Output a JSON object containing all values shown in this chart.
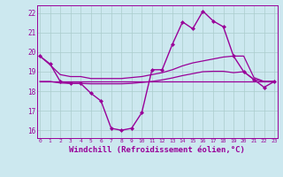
{
  "bg_color": "#cce8ef",
  "line_color": "#990099",
  "grid_color": "#aacccc",
  "xlabel": "Windchill (Refroidissement éolien,°C)",
  "xlabel_fontsize": 6.5,
  "yticks": [
    16,
    17,
    18,
    19,
    20,
    21,
    22
  ],
  "xticks": [
    0,
    1,
    2,
    3,
    4,
    5,
    6,
    7,
    8,
    9,
    10,
    11,
    12,
    13,
    14,
    15,
    16,
    17,
    18,
    19,
    20,
    21,
    22,
    23
  ],
  "xlim": [
    -0.3,
    23.3
  ],
  "ylim": [
    15.6,
    22.4
  ],
  "series": [
    {
      "x": [
        0,
        1,
        2,
        3,
        4,
        5,
        6,
        7,
        8,
        9,
        10,
        11,
        12,
        13,
        14,
        15,
        16,
        17,
        18,
        19,
        20,
        21,
        22,
        23
      ],
      "y": [
        19.8,
        19.4,
        18.5,
        18.4,
        18.4,
        17.9,
        17.5,
        16.1,
        16.0,
        16.1,
        16.9,
        19.1,
        19.1,
        20.4,
        21.55,
        21.2,
        22.1,
        21.6,
        21.3,
        19.8,
        19.0,
        18.6,
        18.2,
        18.5
      ],
      "marker": "D",
      "markersize": 2.0,
      "linewidth": 1.0,
      "has_marker": true
    },
    {
      "x": [
        0,
        1,
        2,
        3,
        4,
        5,
        6,
        7,
        8,
        9,
        10,
        11,
        12,
        13,
        14,
        15,
        16,
        17,
        18,
        19,
        20,
        21,
        22,
        23
      ],
      "y": [
        19.8,
        19.35,
        18.85,
        18.75,
        18.75,
        18.65,
        18.65,
        18.65,
        18.65,
        18.7,
        18.75,
        18.85,
        18.95,
        19.1,
        19.3,
        19.45,
        19.55,
        19.65,
        19.75,
        19.8,
        19.8,
        18.7,
        18.5,
        18.5
      ],
      "marker": null,
      "markersize": 0,
      "linewidth": 0.9,
      "has_marker": false
    },
    {
      "x": [
        0,
        1,
        2,
        3,
        4,
        5,
        6,
        7,
        8,
        9,
        10,
        11,
        12,
        13,
        14,
        15,
        16,
        17,
        18,
        19,
        20,
        21,
        22,
        23
      ],
      "y": [
        18.5,
        18.5,
        18.5,
        18.5,
        18.5,
        18.5,
        18.5,
        18.5,
        18.5,
        18.5,
        18.5,
        18.5,
        18.5,
        18.5,
        18.5,
        18.5,
        18.5,
        18.5,
        18.5,
        18.5,
        18.5,
        18.5,
        18.5,
        18.5
      ],
      "marker": null,
      "markersize": 0,
      "linewidth": 0.9,
      "has_marker": false
    },
    {
      "x": [
        0,
        1,
        2,
        3,
        4,
        5,
        6,
        7,
        8,
        9,
        10,
        11,
        12,
        13,
        14,
        15,
        16,
        17,
        18,
        19,
        20,
        21,
        22,
        23
      ],
      "y": [
        18.5,
        18.5,
        18.42,
        18.4,
        18.4,
        18.38,
        18.38,
        18.38,
        18.38,
        18.4,
        18.45,
        18.5,
        18.58,
        18.68,
        18.8,
        18.9,
        19.0,
        19.02,
        19.02,
        18.95,
        19.0,
        18.6,
        18.5,
        18.5
      ],
      "marker": null,
      "markersize": 0,
      "linewidth": 0.9,
      "has_marker": false
    }
  ]
}
